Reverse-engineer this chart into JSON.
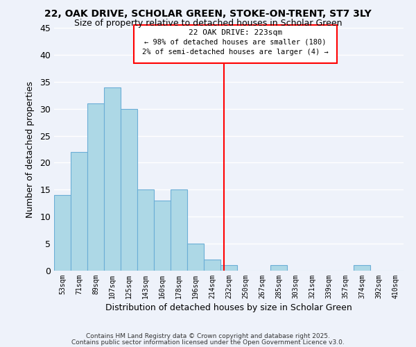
{
  "title1": "22, OAK DRIVE, SCHOLAR GREEN, STOKE-ON-TRENT, ST7 3LY",
  "title2": "Size of property relative to detached houses in Scholar Green",
  "xlabel": "Distribution of detached houses by size in Scholar Green",
  "ylabel": "Number of detached properties",
  "bin_labels": [
    "53sqm",
    "71sqm",
    "89sqm",
    "107sqm",
    "125sqm",
    "143sqm",
    "160sqm",
    "178sqm",
    "196sqm",
    "214sqm",
    "232sqm",
    "250sqm",
    "267sqm",
    "285sqm",
    "303sqm",
    "321sqm",
    "339sqm",
    "357sqm",
    "374sqm",
    "392sqm",
    "410sqm"
  ],
  "bar_values": [
    14,
    22,
    31,
    34,
    30,
    15,
    13,
    15,
    5,
    2,
    1,
    0,
    0,
    1,
    0,
    0,
    0,
    0,
    1,
    0,
    0
  ],
  "bar_color": "#add8e6",
  "bar_edge_color": "#6baed6",
  "vline_x_idx": 9.72,
  "vline_color": "red",
  "ylim": [
    0,
    45
  ],
  "yticks": [
    0,
    5,
    10,
    15,
    20,
    25,
    30,
    35,
    40,
    45
  ],
  "annotation_title": "22 OAK DRIVE: 223sqm",
  "annotation_line1": "← 98% of detached houses are smaller (180)",
  "annotation_line2": "2% of semi-detached houses are larger (4) →",
  "footer1": "Contains HM Land Registry data © Crown copyright and database right 2025.",
  "footer2": "Contains public sector information licensed under the Open Government Licence v3.0.",
  "bg_color": "#eef2fa",
  "grid_color": "white"
}
